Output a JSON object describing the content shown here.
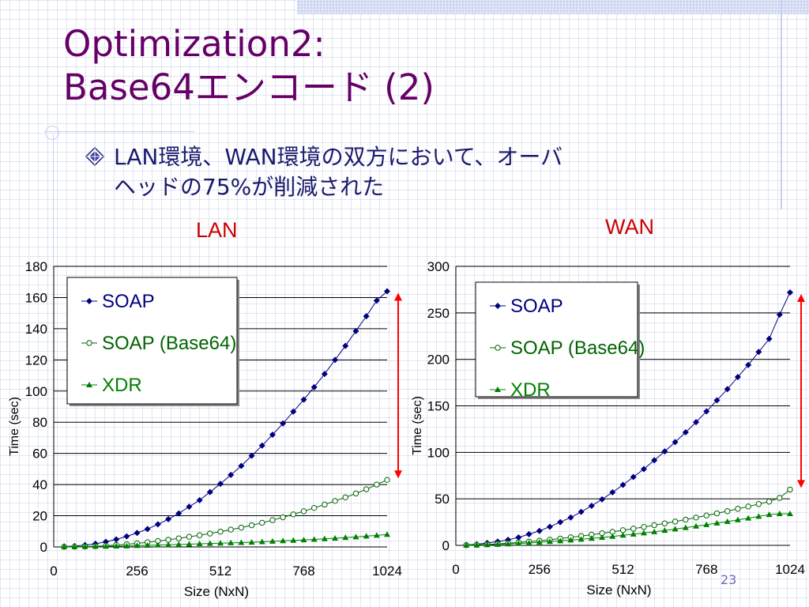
{
  "slide": {
    "title_line1": "Optimization2:",
    "title_line2": "Base64エンコード (2)",
    "bullet_line1": "LAN環境、WAN環境の双方において、オーバ",
    "bullet_line2": "ヘッドの75%が削減された",
    "page_number": "23"
  },
  "colors": {
    "title": "#660066",
    "bullet": "#1a1a6e",
    "chart_label": "#cc0000",
    "soap": "#000080",
    "soap_base64": "#006400",
    "xdr": "#008000",
    "arrow": "#ff0000"
  },
  "chart_data": [
    {
      "type": "line",
      "label": "LAN",
      "xlabel": "Size (NxN)",
      "ylabel": "Time (sec)",
      "xlim": [
        0,
        1024
      ],
      "ylim": [
        0,
        180
      ],
      "xticks": [
        0,
        256,
        512,
        768,
        1024
      ],
      "yticks": [
        0,
        20,
        40,
        60,
        80,
        100,
        120,
        140,
        160,
        180
      ],
      "grid": "horizontal",
      "legend_position": "top-left",
      "x": [
        32,
        64,
        96,
        128,
        160,
        192,
        224,
        256,
        288,
        320,
        352,
        384,
        416,
        448,
        480,
        512,
        544,
        576,
        608,
        640,
        672,
        704,
        736,
        768,
        800,
        832,
        864,
        896,
        928,
        960,
        992,
        1024
      ],
      "series": [
        {
          "name": "SOAP",
          "marker": "diamond",
          "values": [
            0.3,
            0.6,
            1.2,
            2.0,
            3.3,
            4.8,
            6.8,
            9.0,
            11.5,
            14.5,
            17.8,
            21.5,
            25.8,
            30.0,
            35.2,
            40.5,
            46.2,
            52.0,
            58.5,
            65.0,
            72.0,
            79.2,
            86.8,
            94.5,
            102.5,
            111.0,
            120.0,
            129.0,
            138.5,
            148.0,
            158.0,
            164.0
          ]
        },
        {
          "name": "SOAP (Base64)",
          "marker": "circle",
          "values": [
            0.1,
            0.2,
            0.3,
            0.5,
            0.8,
            1.2,
            1.7,
            2.3,
            3.0,
            3.8,
            4.6,
            5.5,
            6.5,
            7.5,
            8.6,
            9.8,
            11.1,
            12.4,
            13.9,
            15.5,
            17.2,
            19.0,
            20.9,
            22.9,
            25.0,
            27.2,
            29.5,
            31.8,
            34.3,
            37.0,
            40.0,
            43.0
          ]
        },
        {
          "name": "XDR",
          "marker": "triangle",
          "values": [
            0.1,
            0.1,
            0.2,
            0.3,
            0.4,
            0.5,
            0.6,
            0.8,
            1.0,
            1.2,
            1.4,
            1.6,
            1.8,
            2.0,
            2.2,
            2.4,
            2.6,
            2.8,
            3.0,
            3.3,
            3.6,
            3.9,
            4.2,
            4.5,
            4.8,
            5.2,
            5.6,
            6.0,
            6.4,
            6.9,
            7.4,
            8.0
          ]
        }
      ]
    },
    {
      "type": "line",
      "label": "WAN",
      "xlabel": "Size (NxN)",
      "ylabel": "Time (sec)",
      "xlim": [
        0,
        1024
      ],
      "ylim": [
        0,
        300
      ],
      "xticks": [
        0,
        256,
        512,
        768,
        1024
      ],
      "yticks": [
        0,
        50,
        100,
        150,
        200,
        250,
        300
      ],
      "grid": "horizontal",
      "legend_position": "top-left",
      "x": [
        32,
        64,
        96,
        128,
        160,
        192,
        224,
        256,
        288,
        320,
        352,
        384,
        416,
        448,
        480,
        512,
        544,
        576,
        608,
        640,
        672,
        704,
        736,
        768,
        800,
        832,
        864,
        896,
        928,
        960,
        992,
        1024
      ],
      "series": [
        {
          "name": "SOAP",
          "marker": "diamond",
          "values": [
            0.5,
            1.2,
            2.5,
            4.0,
            6.0,
            8.5,
            12.0,
            15.5,
            20.0,
            25.0,
            30.0,
            36.0,
            42.5,
            49.5,
            57.0,
            65.0,
            73.5,
            82.0,
            91.5,
            101.0,
            111.0,
            121.5,
            132.5,
            144.0,
            156.0,
            168.0,
            181.0,
            194.0,
            208.0,
            222.0,
            248.0,
            272.0
          ]
        },
        {
          "name": "SOAP (Base64)",
          "marker": "circle",
          "values": [
            0.2,
            0.5,
            1.0,
            1.6,
            2.3,
            3.1,
            4.0,
            5.0,
            6.1,
            7.3,
            8.6,
            10.0,
            11.5,
            13.0,
            14.6,
            16.3,
            18.0,
            19.8,
            21.7,
            23.6,
            25.6,
            27.7,
            29.9,
            32.1,
            34.4,
            36.8,
            39.3,
            41.8,
            44.4,
            47.1,
            51.0,
            60.0
          ]
        },
        {
          "name": "XDR",
          "marker": "triangle",
          "values": [
            0.1,
            0.3,
            0.6,
            1.0,
            1.5,
            2.0,
            2.6,
            3.3,
            4.0,
            4.8,
            5.6,
            6.5,
            7.5,
            8.5,
            9.6,
            10.8,
            12.0,
            13.3,
            14.6,
            16.0,
            17.5,
            19.0,
            20.6,
            22.2,
            23.9,
            25.6,
            27.4,
            29.2,
            31.1,
            33.0,
            34.0,
            34.0
          ]
        }
      ]
    }
  ]
}
